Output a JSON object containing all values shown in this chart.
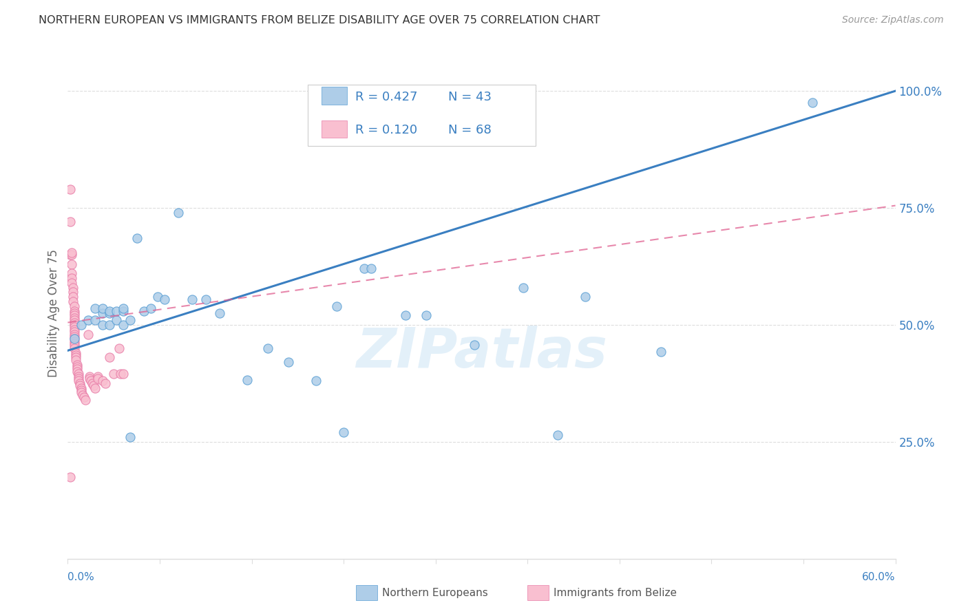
{
  "title": "NORTHERN EUROPEAN VS IMMIGRANTS FROM BELIZE DISABILITY AGE OVER 75 CORRELATION CHART",
  "source": "Source: ZipAtlas.com",
  "ylabel": "Disability Age Over 75",
  "watermark": "ZIPatlas",
  "legend_r1": "R = 0.427",
  "legend_n1": "N = 43",
  "legend_r2": "R = 0.120",
  "legend_n2": "N = 68",
  "blue_color": "#aecde8",
  "pink_color": "#f9bfd0",
  "blue_edge_color": "#5a9fd4",
  "pink_edge_color": "#e87da8",
  "blue_line_color": "#3a7fc1",
  "pink_line_color": "#e06090",
  "blue_scatter_x": [
    0.005,
    0.01,
    0.015,
    0.02,
    0.02,
    0.025,
    0.025,
    0.025,
    0.03,
    0.03,
    0.03,
    0.035,
    0.035,
    0.04,
    0.04,
    0.04,
    0.045,
    0.045,
    0.05,
    0.055,
    0.06,
    0.065,
    0.07,
    0.08,
    0.09,
    0.1,
    0.11,
    0.13,
    0.145,
    0.16,
    0.18,
    0.195,
    0.2,
    0.215,
    0.22,
    0.245,
    0.26,
    0.295,
    0.33,
    0.355,
    0.375,
    0.43,
    0.54
  ],
  "blue_scatter_y": [
    0.47,
    0.5,
    0.51,
    0.535,
    0.51,
    0.5,
    0.525,
    0.535,
    0.5,
    0.525,
    0.53,
    0.51,
    0.53,
    0.5,
    0.53,
    0.535,
    0.26,
    0.51,
    0.685,
    0.53,
    0.535,
    0.56,
    0.555,
    0.74,
    0.555,
    0.555,
    0.525,
    0.382,
    0.45,
    0.42,
    0.38,
    0.54,
    0.27,
    0.62,
    0.62,
    0.52,
    0.52,
    0.457,
    0.58,
    0.265,
    0.56,
    0.442,
    0.975
  ],
  "pink_scatter_x": [
    0.002,
    0.002,
    0.002,
    0.003,
    0.003,
    0.003,
    0.003,
    0.003,
    0.004,
    0.004,
    0.004,
    0.004,
    0.005,
    0.005,
    0.005,
    0.005,
    0.005,
    0.005,
    0.005,
    0.005,
    0.005,
    0.005,
    0.005,
    0.005,
    0.005,
    0.005,
    0.005,
    0.005,
    0.005,
    0.005,
    0.006,
    0.006,
    0.006,
    0.006,
    0.007,
    0.007,
    0.007,
    0.007,
    0.008,
    0.008,
    0.008,
    0.008,
    0.009,
    0.009,
    0.01,
    0.01,
    0.01,
    0.011,
    0.012,
    0.013,
    0.015,
    0.016,
    0.016,
    0.017,
    0.018,
    0.019,
    0.02,
    0.022,
    0.022,
    0.025,
    0.027,
    0.03,
    0.033,
    0.037,
    0.038,
    0.04,
    0.002,
    0.003
  ],
  "pink_scatter_y": [
    0.79,
    0.72,
    0.65,
    0.65,
    0.63,
    0.61,
    0.6,
    0.59,
    0.58,
    0.57,
    0.56,
    0.55,
    0.54,
    0.53,
    0.525,
    0.52,
    0.515,
    0.51,
    0.505,
    0.5,
    0.495,
    0.49,
    0.485,
    0.48,
    0.475,
    0.47,
    0.465,
    0.46,
    0.455,
    0.45,
    0.44,
    0.435,
    0.43,
    0.425,
    0.415,
    0.41,
    0.405,
    0.4,
    0.395,
    0.39,
    0.385,
    0.38,
    0.375,
    0.37,
    0.365,
    0.36,
    0.355,
    0.35,
    0.345,
    0.34,
    0.48,
    0.39,
    0.385,
    0.38,
    0.375,
    0.37,
    0.365,
    0.39,
    0.385,
    0.38,
    0.375,
    0.43,
    0.395,
    0.45,
    0.395,
    0.395,
    0.175,
    0.655
  ],
  "xmin": 0.0,
  "xmax": 0.6,
  "ymin": 0.0,
  "ymax": 1.05,
  "grid_color": "#dddddd",
  "blue_trend_x0": 0.0,
  "blue_trend_y0": 0.445,
  "blue_trend_x1": 0.6,
  "blue_trend_y1": 1.0,
  "pink_trend_x0": 0.0,
  "pink_trend_y0": 0.505,
  "pink_trend_x1": 0.6,
  "pink_trend_y1": 0.755
}
